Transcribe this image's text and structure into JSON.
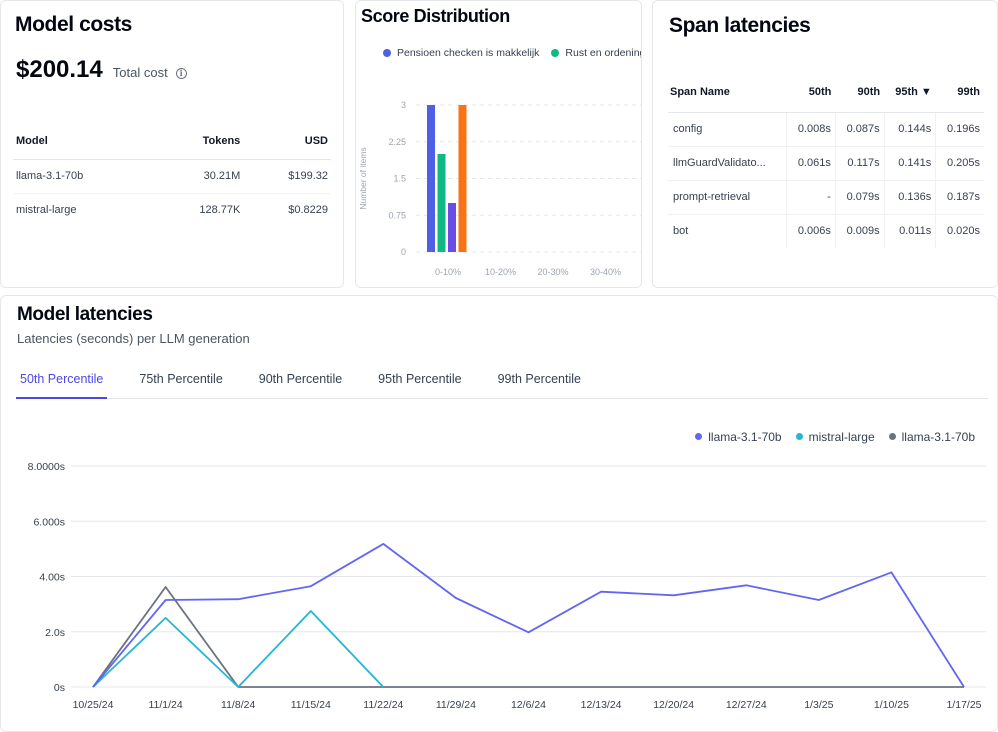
{
  "model_costs": {
    "title": "Model costs",
    "total_value": "$200.14",
    "total_label": "Total cost",
    "headers": [
      "Model",
      "Tokens",
      "USD"
    ],
    "rows": [
      {
        "model": "llama-3.1-70b",
        "tokens": "30.21M",
        "usd": "$199.32"
      },
      {
        "model": "mistral-large",
        "tokens": "128.77K",
        "usd": "$0.8229"
      }
    ]
  },
  "score_distribution": {
    "title": "Score Distribution",
    "legend": [
      {
        "label": "Pensioen checken is makkelijk",
        "color": "#4f5fe6"
      },
      {
        "label": "Rust en ordening",
        "color": "#10b981"
      }
    ]
  },
  "span_latencies": {
    "title": "Span latencies",
    "headers": [
      "Span Name",
      "50th",
      "90th",
      "95th ▼",
      "99th"
    ],
    "rows": [
      [
        "config",
        "0.008s",
        "0.087s",
        "0.144s",
        "0.196s"
      ],
      [
        "llmGuardValidato...",
        "0.061s",
        "0.117s",
        "0.141s",
        "0.205s"
      ],
      [
        "prompt-retrieval",
        "-",
        "0.079s",
        "0.136s",
        "0.187s"
      ],
      [
        "bot",
        "0.006s",
        "0.009s",
        "0.011s",
        "0.020s"
      ]
    ]
  },
  "model_latencies": {
    "title": "Model latencies",
    "subtitle": "Latencies (seconds) per LLM generation",
    "tabs": [
      "50th Percentile",
      "75th Percentile",
      "90th Percentile",
      "95th Percentile",
      "99th Percentile"
    ],
    "active_tab": 0
  },
  "chart_data": [
    {
      "type": "bar",
      "title": "Score Distribution",
      "ylabel": "Number of items",
      "xlabel": "",
      "categories": [
        "0-10%",
        "10-20%",
        "20-30%",
        "30-40%"
      ],
      "yticks": [
        "0",
        "0.75",
        "1.5",
        "2.25",
        "3"
      ],
      "ylim": [
        0,
        3
      ],
      "grid": true,
      "legend_position": "top",
      "series": [
        {
          "name": "Pensioen checken is makkelijk",
          "color": "#4f5fe6",
          "values": [
            3,
            0,
            0,
            0
          ]
        },
        {
          "name": "Rust en ordening",
          "color": "#10b981",
          "values": [
            2,
            0,
            0,
            0
          ]
        },
        {
          "color": "#6b4de6",
          "values": [
            1,
            0,
            0,
            0
          ]
        },
        {
          "color": "#f97316",
          "values": [
            3,
            0,
            0,
            0
          ]
        }
      ]
    },
    {
      "type": "line",
      "title": "",
      "xlabel": "",
      "ylabel": "",
      "x": [
        "10/25/24",
        "11/1/24",
        "11/8/24",
        "11/15/24",
        "11/22/24",
        "11/29/24",
        "12/6/24",
        "12/13/24",
        "12/20/24",
        "12/27/24",
        "1/3/25",
        "1/10/25",
        "1/17/25"
      ],
      "yticks": [
        "0s",
        "2.0s",
        "4.00s",
        "6.000s",
        "8.0000s"
      ],
      "ylim": [
        0,
        8
      ],
      "grid": true,
      "legend_position": "top-right",
      "series": [
        {
          "name": "llama-3.1-70b",
          "color": "#6366f1",
          "values": [
            0,
            3.15,
            3.18,
            3.65,
            5.18,
            3.22,
            1.98,
            3.45,
            3.32,
            3.68,
            3.15,
            4.15,
            0
          ]
        },
        {
          "name": "mistral-large",
          "color": "#22b8cf",
          "values": [
            0,
            2.5,
            0,
            2.75,
            0,
            null,
            null,
            null,
            null,
            null,
            null,
            null,
            null
          ]
        },
        {
          "name": "llama-3.1-70b",
          "color": "#6b7280",
          "values": [
            0,
            3.62,
            0,
            0,
            0,
            0,
            0,
            0,
            0,
            0,
            0,
            0,
            0
          ]
        }
      ]
    }
  ]
}
